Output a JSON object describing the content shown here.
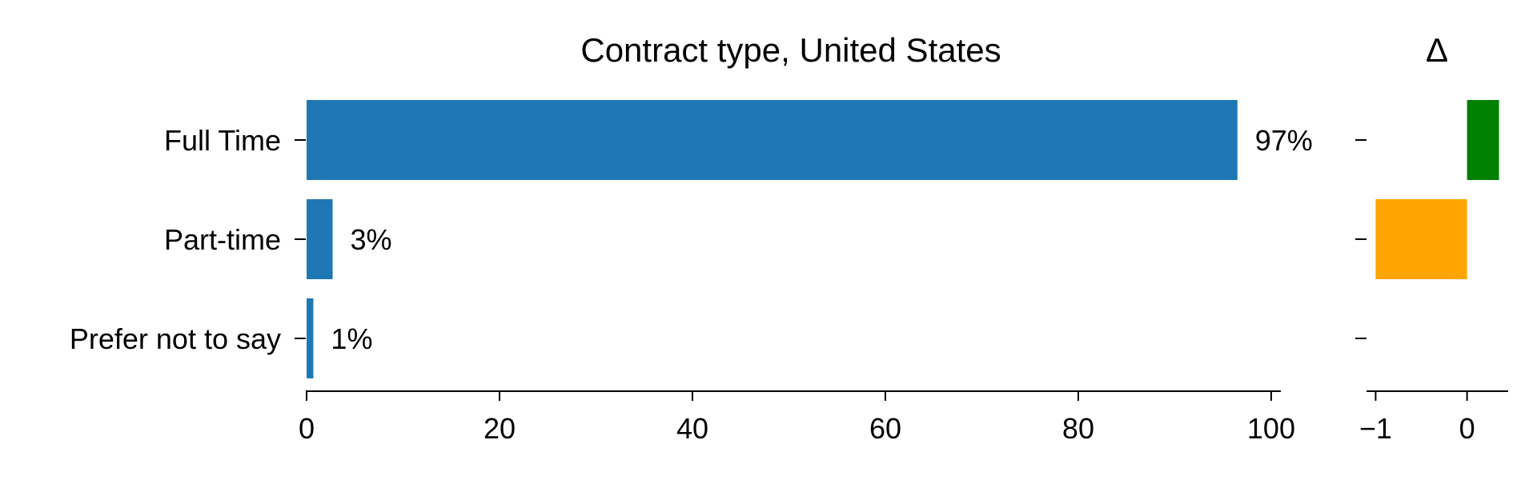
{
  "chart_data": [
    {
      "type": "bar",
      "orientation": "horizontal",
      "title": "Contract type, United States",
      "categories": [
        "Full Time",
        "Part-time",
        "Prefer not to say"
      ],
      "values": [
        96.5,
        2.7,
        0.7
      ],
      "data_labels": [
        "97%",
        "3%",
        "1%"
      ],
      "xlim": [
        0,
        101
      ],
      "xticks": [
        0,
        20,
        40,
        60,
        80,
        100
      ],
      "xtick_labels": [
        "0",
        "20",
        "40",
        "60",
        "80",
        "100"
      ],
      "bar_color": "#1f77b4",
      "grid": false
    },
    {
      "type": "bar",
      "orientation": "horizontal",
      "title": "Δ",
      "categories": [
        "Full Time",
        "Part-time",
        "Prefer not to say"
      ],
      "values": [
        0.35,
        -1.0,
        0.0
      ],
      "xlim": [
        -1.1,
        0.45
      ],
      "xticks": [
        -1,
        0
      ],
      "xtick_labels": [
        "−1",
        "0"
      ],
      "positive_color": "#008000",
      "negative_color": "#ffa500",
      "grid": false
    }
  ]
}
